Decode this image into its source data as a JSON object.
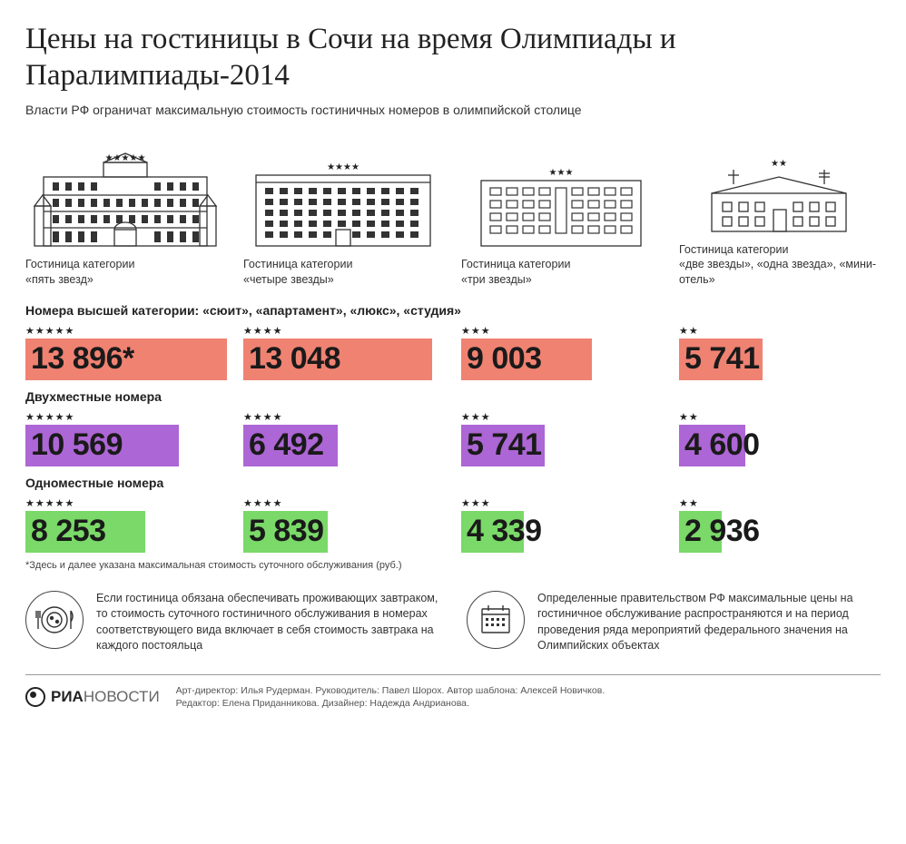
{
  "title": "Цены на гостиницы в Сочи на время Олимпиады и Паралимпиады-2014",
  "subtitle": "Власти РФ ограничат максимальную стоимость гостиничных номеров в олимпийской столице",
  "colors": {
    "suite": "#f08272",
    "double": "#ad66d5",
    "single": "#7ad968",
    "text": "#1a1a1a",
    "background": "#ffffff"
  },
  "hotels": [
    {
      "stars": "★★★★★",
      "label_l1": "Гостиница категории",
      "label_l2": "«пять звезд»"
    },
    {
      "stars": "★★★★",
      "label_l1": "Гостиница категории",
      "label_l2": "«четыре звезды»"
    },
    {
      "stars": "★★★",
      "label_l1": "Гостиница категории",
      "label_l2": "«три звезды»"
    },
    {
      "stars": "★★",
      "label_l1": "Гостиница категории",
      "label_l2": "«две звезды», «одна звезда», «мини-отель»"
    }
  ],
  "sections": [
    {
      "title": "Номера высшей категории: «сюит», «апартамент», «люкс», «студия»",
      "color": "#f08272",
      "max": 13896,
      "cells": [
        {
          "stars": "★★★★★",
          "value": "13 896*",
          "num": 13896
        },
        {
          "stars": "★★★★",
          "value": "13 048",
          "num": 13048
        },
        {
          "stars": "★★★",
          "value": "9 003",
          "num": 9003
        },
        {
          "stars": "★★",
          "value": "5 741",
          "num": 5741
        }
      ]
    },
    {
      "title": "Двухместные номера",
      "color": "#ad66d5",
      "max": 13896,
      "cells": [
        {
          "stars": "★★★★★",
          "value": "10 569",
          "num": 10569
        },
        {
          "stars": "★★★★",
          "value": "6 492",
          "num": 6492
        },
        {
          "stars": "★★★",
          "value": "5 741",
          "num": 5741
        },
        {
          "stars": "★★",
          "value": "4 600",
          "num": 4600
        }
      ]
    },
    {
      "title": "Одноместные номера",
      "color": "#7ad968",
      "max": 13896,
      "cells": [
        {
          "stars": "★★★★★",
          "value": "8 253",
          "num": 8253
        },
        {
          "stars": "★★★★",
          "value": "5 839",
          "num": 5839
        },
        {
          "stars": "★★★",
          "value": "4 339",
          "num": 4339
        },
        {
          "stars": "★★",
          "value": "2 936",
          "num": 2936
        }
      ]
    }
  ],
  "footnote": "*Здесь и далее указана максимальная стоимость суточного обслуживания (руб.)",
  "info": [
    {
      "icon": "breakfast",
      "text": "Если гостиница обязана обеспечивать проживающих завтраком, то стоимость суточного гостиничного обслуживания в номерах соответствующего вида включает в себя стоимость завтрака на каждого постояльца"
    },
    {
      "icon": "calendar",
      "text": "Определенные правительством РФ максимальные цены на гостиничное обслуживание распространяются и на период проведения ряда мероприятий федерального значения на Олимпийских объектах"
    }
  ],
  "logo": {
    "ria": "РИА",
    "nov": "НОВОСТИ"
  },
  "credits_l1": "Арт-директор: Илья Рудерман. Руководитель: Павел Шорох. Автор шаблона: Алексей Новичков.",
  "credits_l2": "Редактор: Елена Приданникова. Дизайнер: Надежда Андрианова."
}
